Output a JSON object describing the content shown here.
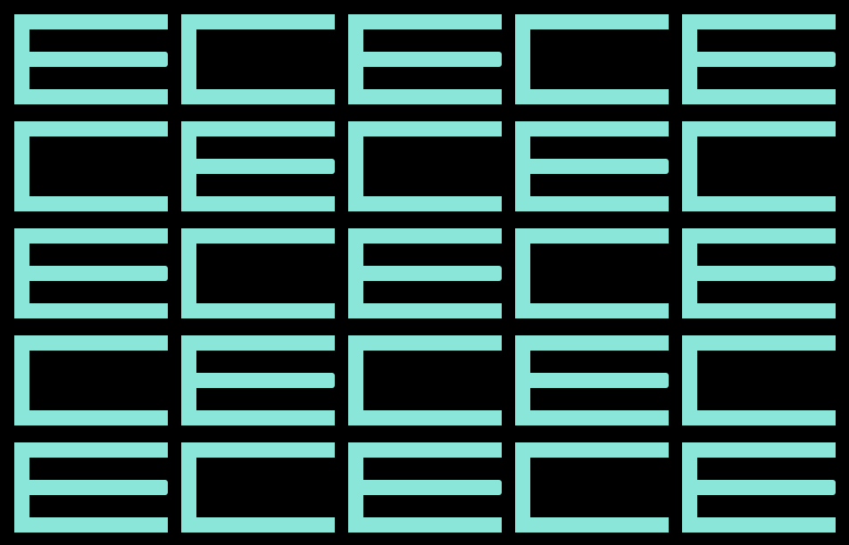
{
  "background_color": "#000000",
  "glyph_color": "#8ae6d9",
  "rows": [
    [
      "E",
      "C",
      "E",
      "C",
      "E"
    ],
    [
      "C",
      "E",
      "C",
      "E",
      "C"
    ],
    [
      "E",
      "C",
      "E",
      "C",
      "E"
    ],
    [
      "C",
      "E",
      "C",
      "E",
      "C"
    ],
    [
      "E",
      "C",
      "E",
      "C",
      "E"
    ]
  ]
}
